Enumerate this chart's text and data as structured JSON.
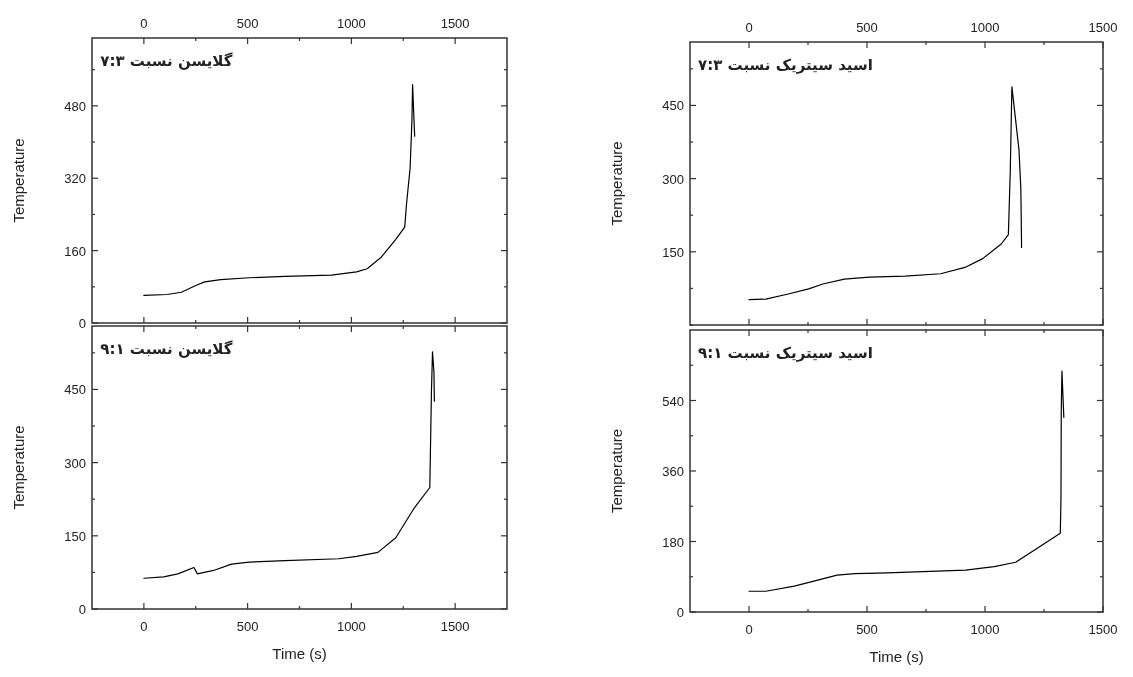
{
  "chart_data": [
    {
      "type": "line",
      "title": "گلایسن نسبت ۷:۳",
      "ylabel": "Temperature",
      "xlim": [
        -250,
        1750
      ],
      "xticks": [
        0,
        {
          "value": 250,
          "label": null
        },
        500,
        {
          "value": 750,
          "label": null
        },
        1000,
        {
          "value": 1250,
          "label": null
        },
        1500
      ],
      "ylim": [
        0,
        630
      ],
      "yticks": [
        0,
        {
          "value": 80,
          "label": null
        },
        160,
        {
          "value": 240,
          "label": null
        },
        320,
        {
          "value": 400,
          "label": null
        },
        480,
        {
          "value": 560,
          "label": null
        }
      ],
      "grid": false,
      "marker": "none",
      "line_style": "solid",
      "series": [
        {
          "color": "#000000",
          "x": [
            0,
            112,
            181,
            250,
            293,
            370,
            508,
            680,
            904,
            1025,
            1076,
            1145,
            1214,
            1257,
            1266,
            1283,
            1292,
            1295,
            1300,
            1305
          ],
          "values": [
            61,
            63,
            68,
            83,
            91,
            96,
            100,
            103,
            106,
            113,
            120,
            146,
            185,
            212,
            264,
            342,
            450,
            527,
            470,
            413
          ]
        }
      ]
    },
    {
      "type": "line",
      "title": "اسید سیتریک نسبت ۷:۳",
      "ylabel": "Temperature",
      "xlim": [
        -250,
        1500
      ],
      "xticks": [
        0,
        {
          "value": 250,
          "label": null
        },
        500,
        {
          "value": 750,
          "label": null
        },
        1000,
        {
          "value": 1250,
          "label": null
        },
        1500
      ],
      "ylim": [
        0,
        580
      ],
      "yticks": [
        {
          "value": 0,
          "label": null
        },
        {
          "value": 75,
          "label": null
        },
        150,
        {
          "value": 225,
          "label": null
        },
        300,
        {
          "value": 375,
          "label": null
        },
        450,
        {
          "value": 525,
          "label": null
        }
      ],
      "grid": false,
      "marker": "none",
      "line_style": "solid",
      "series": [
        {
          "color": "#000000",
          "x": [
            0,
            71,
            162,
            253,
            313,
            404,
            510,
            661,
            812,
            915,
            990,
            1069,
            1099,
            1107,
            1114,
            1144,
            1152,
            1155
          ],
          "values": [
            52,
            53,
            63,
            74,
            84,
            94,
            98,
            100,
            105,
            118,
            136,
            166,
            185,
            314,
            488,
            359,
            277,
            159
          ]
        }
      ]
    },
    {
      "type": "line",
      "title": "گلایسن نسبت ۹:۱",
      "xlabel": "Time (s)",
      "ylabel": "Temperature",
      "xlim": [
        -250,
        1750
      ],
      "xticks": [
        0,
        {
          "value": 250,
          "label": null
        },
        500,
        {
          "value": 750,
          "label": null
        },
        1000,
        {
          "value": 1250,
          "label": null
        },
        1500
      ],
      "ylim": [
        0,
        580
      ],
      "yticks": [
        0,
        {
          "value": 75,
          "label": null
        },
        150,
        {
          "value": 225,
          "label": null
        },
        300,
        {
          "value": 375,
          "label": null
        },
        450,
        {
          "value": 525,
          "label": null
        }
      ],
      "grid": false,
      "marker": "none",
      "line_style": "solid",
      "series": [
        {
          "color": "#000000",
          "x": [
            0,
            95,
            164,
            241,
            258,
            336,
            422,
            508,
            680,
            939,
            1025,
            1128,
            1214,
            1300,
            1378,
            1386,
            1391,
            1398,
            1400
          ],
          "values": [
            63,
            66,
            72,
            85,
            72,
            79,
            92,
            96,
            99,
            103,
            108,
            116,
            146,
            205,
            249,
            448,
            527,
            485,
            426
          ]
        }
      ]
    },
    {
      "type": "line",
      "title": "اسید سیتریک نسبت ۹:۱",
      "xlabel": "Time (s)",
      "ylabel": "Temperature",
      "xlim": [
        -250,
        1500
      ],
      "xticks": [
        0,
        {
          "value": 250,
          "label": null
        },
        500,
        {
          "value": 750,
          "label": null
        },
        1000,
        {
          "value": 1250,
          "label": null
        },
        1500
      ],
      "ylim": [
        0,
        720
      ],
      "yticks": [
        0,
        {
          "value": 90,
          "label": null
        },
        180,
        {
          "value": 270,
          "label": null
        },
        360,
        {
          "value": 450,
          "label": null
        },
        540,
        {
          "value": 630,
          "label": null
        }
      ],
      "grid": false,
      "marker": "none",
      "line_style": "solid",
      "series": [
        {
          "color": "#000000",
          "x": [
            0,
            71,
            192,
            283,
            373,
            449,
            585,
            736,
            918,
            1039,
            1130,
            1220,
            1319,
            1322,
            1323,
            1326,
            1334
          ],
          "values": [
            53,
            53,
            66,
            80,
            94,
            98,
            100,
            103,
            107,
            116,
            127,
            162,
            201,
            289,
            506,
            615,
            497
          ]
        }
      ]
    }
  ]
}
